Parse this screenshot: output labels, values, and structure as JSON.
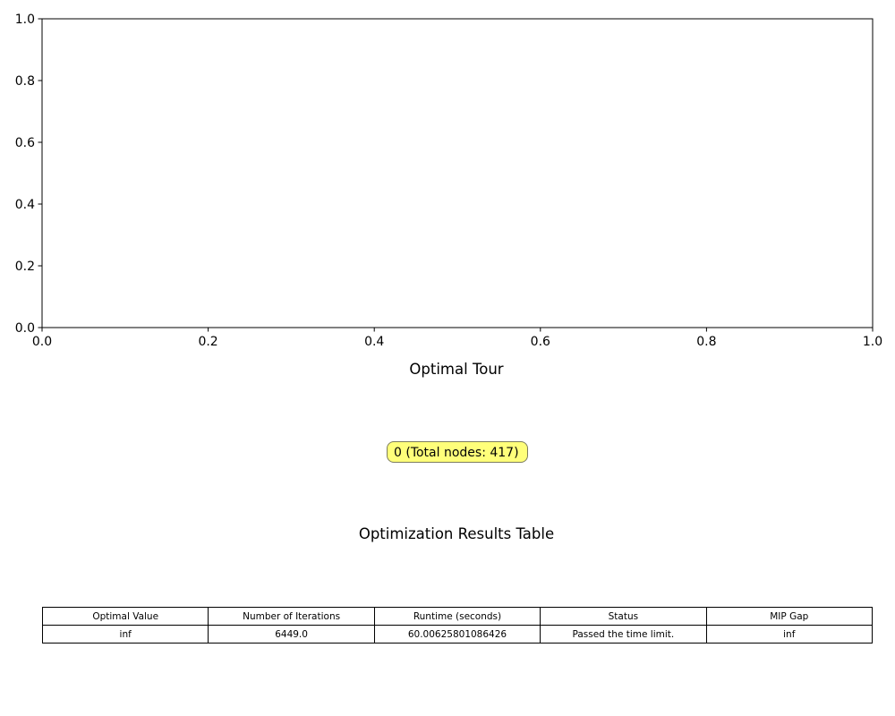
{
  "chart_data": [
    {
      "type": "line",
      "title": "Optimal Tour",
      "xlim": [
        0.0,
        1.0
      ],
      "ylim": [
        0.0,
        1.0
      ],
      "xticks": [
        "0.0",
        "0.2",
        "0.4",
        "0.6",
        "0.8",
        "1.0"
      ],
      "yticks": [
        "0.0",
        "0.2",
        "0.4",
        "0.6",
        "0.8",
        "1.0"
      ],
      "series": [],
      "grid": false,
      "annotation": "0 (Total nodes: 417)"
    },
    {
      "type": "table",
      "title": "Optimization Results Table",
      "columns": [
        "Optimal Value",
        "Number of Iterations",
        "Runtime (seconds)",
        "Status",
        "MIP Gap"
      ],
      "rows": [
        [
          "inf",
          "6449.0",
          "60.00625801086426",
          "Passed the time limit.",
          "inf"
        ]
      ]
    }
  ]
}
